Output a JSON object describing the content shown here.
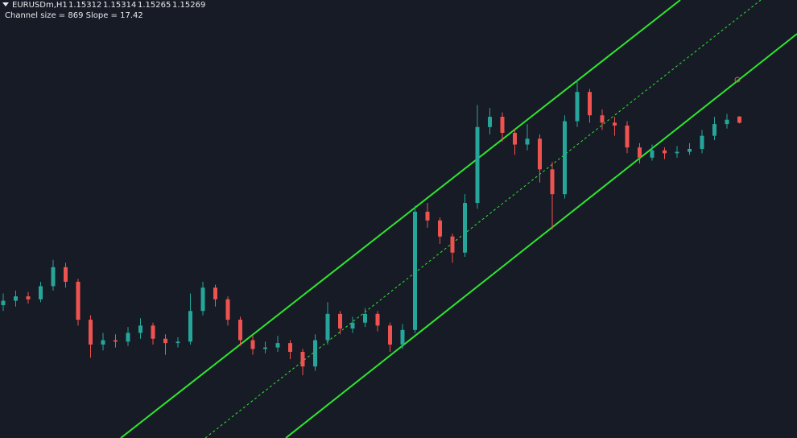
{
  "chart_data": {
    "type": "candlestick",
    "title": "EURUSDm,H1",
    "subtitle": "Channel size = 869 Slope = 17.42",
    "up_color": "#26a69a",
    "down_color": "#ef5350",
    "ylim": [
      1.1311,
      1.1611
    ],
    "open": [
      1.1402,
      1.1405,
      1.1408,
      1.1406,
      1.1415,
      1.1428,
      1.1418,
      1.1392,
      1.1375,
      1.1378,
      1.1377,
      1.1383,
      1.1388,
      1.1379,
      1.1376,
      1.1377,
      1.1398,
      1.1414,
      1.1406,
      1.1392,
      1.1378,
      1.1372,
      1.1373,
      1.1376,
      1.137,
      1.136,
      1.1378,
      1.1396,
      1.1386,
      1.139,
      1.1396,
      1.1388,
      1.1375,
      1.1385,
      1.1466,
      1.146,
      1.1449,
      1.1438,
      1.1472,
      1.1524,
      1.1531,
      1.152,
      1.1512,
      1.1516,
      1.1495,
      1.1478,
      1.1528,
      1.1548,
      1.1532,
      1.1527,
      1.1525,
      1.151,
      1.1503,
      1.1508,
      1.1506,
      1.1507,
      1.1509,
      1.1518,
      1.1526,
      1.15312
    ],
    "high": [
      1.141,
      1.1412,
      1.1411,
      1.1418,
      1.1433,
      1.1431,
      1.142,
      1.1395,
      1.1383,
      1.1382,
      1.1387,
      1.1393,
      1.139,
      1.1382,
      1.138,
      1.141,
      1.1418,
      1.1416,
      1.1408,
      1.1394,
      1.1381,
      1.1377,
      1.1381,
      1.1378,
      1.1372,
      1.1382,
      1.1404,
      1.1398,
      1.1394,
      1.14,
      1.1398,
      1.139,
      1.1389,
      1.147,
      1.1472,
      1.1462,
      1.1451,
      1.1478,
      1.1539,
      1.1537,
      1.1534,
      1.1523,
      1.1526,
      1.1519,
      1.15,
      1.1532,
      1.1556,
      1.155,
      1.1536,
      1.1531,
      1.1528,
      1.1513,
      1.1512,
      1.151,
      1.1511,
      1.1513,
      1.1522,
      1.1531,
      1.1533,
      1.15314
    ],
    "low": [
      1.1398,
      1.1401,
      1.1403,
      1.1404,
      1.1412,
      1.1414,
      1.1388,
      1.1366,
      1.1371,
      1.1373,
      1.1374,
      1.1379,
      1.1375,
      1.1368,
      1.1373,
      1.1375,
      1.1395,
      1.1401,
      1.1388,
      1.1374,
      1.1368,
      1.1369,
      1.137,
      1.1365,
      1.1354,
      1.1357,
      1.1375,
      1.1382,
      1.1383,
      1.1387,
      1.1384,
      1.137,
      1.1372,
      1.1383,
      1.1455,
      1.1444,
      1.1431,
      1.1435,
      1.1468,
      1.1519,
      1.1514,
      1.1505,
      1.1508,
      1.1486,
      1.1454,
      1.1475,
      1.1524,
      1.1527,
      1.1522,
      1.1518,
      1.1506,
      1.1499,
      1.1501,
      1.1502,
      1.1503,
      1.1505,
      1.1506,
      1.1515,
      1.1523,
      1.15265
    ],
    "close": [
      1.1405,
      1.1408,
      1.1406,
      1.1415,
      1.1428,
      1.1418,
      1.1392,
      1.1375,
      1.1378,
      1.1377,
      1.1383,
      1.1388,
      1.1379,
      1.1376,
      1.1377,
      1.1398,
      1.1414,
      1.1406,
      1.1392,
      1.1378,
      1.1372,
      1.1373,
      1.1376,
      1.137,
      1.136,
      1.1378,
      1.1396,
      1.1386,
      1.139,
      1.1396,
      1.1388,
      1.1375,
      1.1385,
      1.1466,
      1.146,
      1.1449,
      1.1438,
      1.1472,
      1.1524,
      1.1531,
      1.152,
      1.1512,
      1.1516,
      1.1495,
      1.1478,
      1.1528,
      1.1548,
      1.1532,
      1.1527,
      1.1525,
      1.151,
      1.1503,
      1.1508,
      1.1506,
      1.1507,
      1.1509,
      1.1518,
      1.1526,
      1.1529,
      1.15269
    ]
  }
}
